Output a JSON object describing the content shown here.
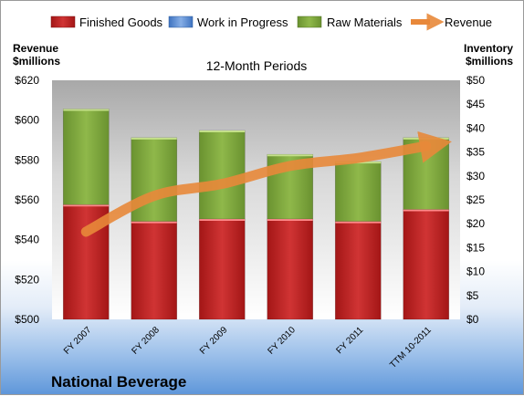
{
  "chart_data": {
    "type": "bar",
    "subtitle": "12-Month Periods",
    "company": "National Beverage",
    "categories": [
      "FY 2007",
      "FY 2008",
      "FY 2009",
      "FY 2010",
      "FY 2011",
      "TTM 10-2011"
    ],
    "series": [
      {
        "name": "Finished Goods",
        "axis": "right",
        "stack": "inventory",
        "color": "#c0272d",
        "values": [
          24.0,
          20.5,
          21.0,
          21.0,
          20.5,
          23.0
        ]
      },
      {
        "name": "Work in Progress",
        "axis": "right",
        "stack": "inventory",
        "color": "#5b8fd6",
        "values": [
          0,
          0,
          0,
          0,
          0,
          0
        ]
      },
      {
        "name": "Raw Materials",
        "axis": "right",
        "stack": "inventory",
        "color": "#7fa83a",
        "values": [
          20.0,
          17.5,
          18.5,
          13.5,
          12.5,
          15.0
        ]
      },
      {
        "name": "Revenue",
        "axis": "left",
        "type": "line",
        "color": "#e8883a",
        "values": [
          544,
          562,
          568,
          577,
          581,
          587
        ]
      }
    ],
    "y_left": {
      "label": [
        "Revenue",
        "$millions"
      ],
      "ylim": [
        500,
        620
      ],
      "ticks": [
        "$500",
        "$520",
        "$540",
        "$560",
        "$580",
        "$600",
        "$620"
      ]
    },
    "y_right": {
      "label": [
        "Inventory",
        "$millions"
      ],
      "ylim": [
        0,
        50
      ],
      "ticks": [
        "$0",
        "$5",
        "$10",
        "$15",
        "$20",
        "$25",
        "$30",
        "$35",
        "$40",
        "$45",
        "$50"
      ]
    },
    "legend_position": "top",
    "grid": false
  }
}
